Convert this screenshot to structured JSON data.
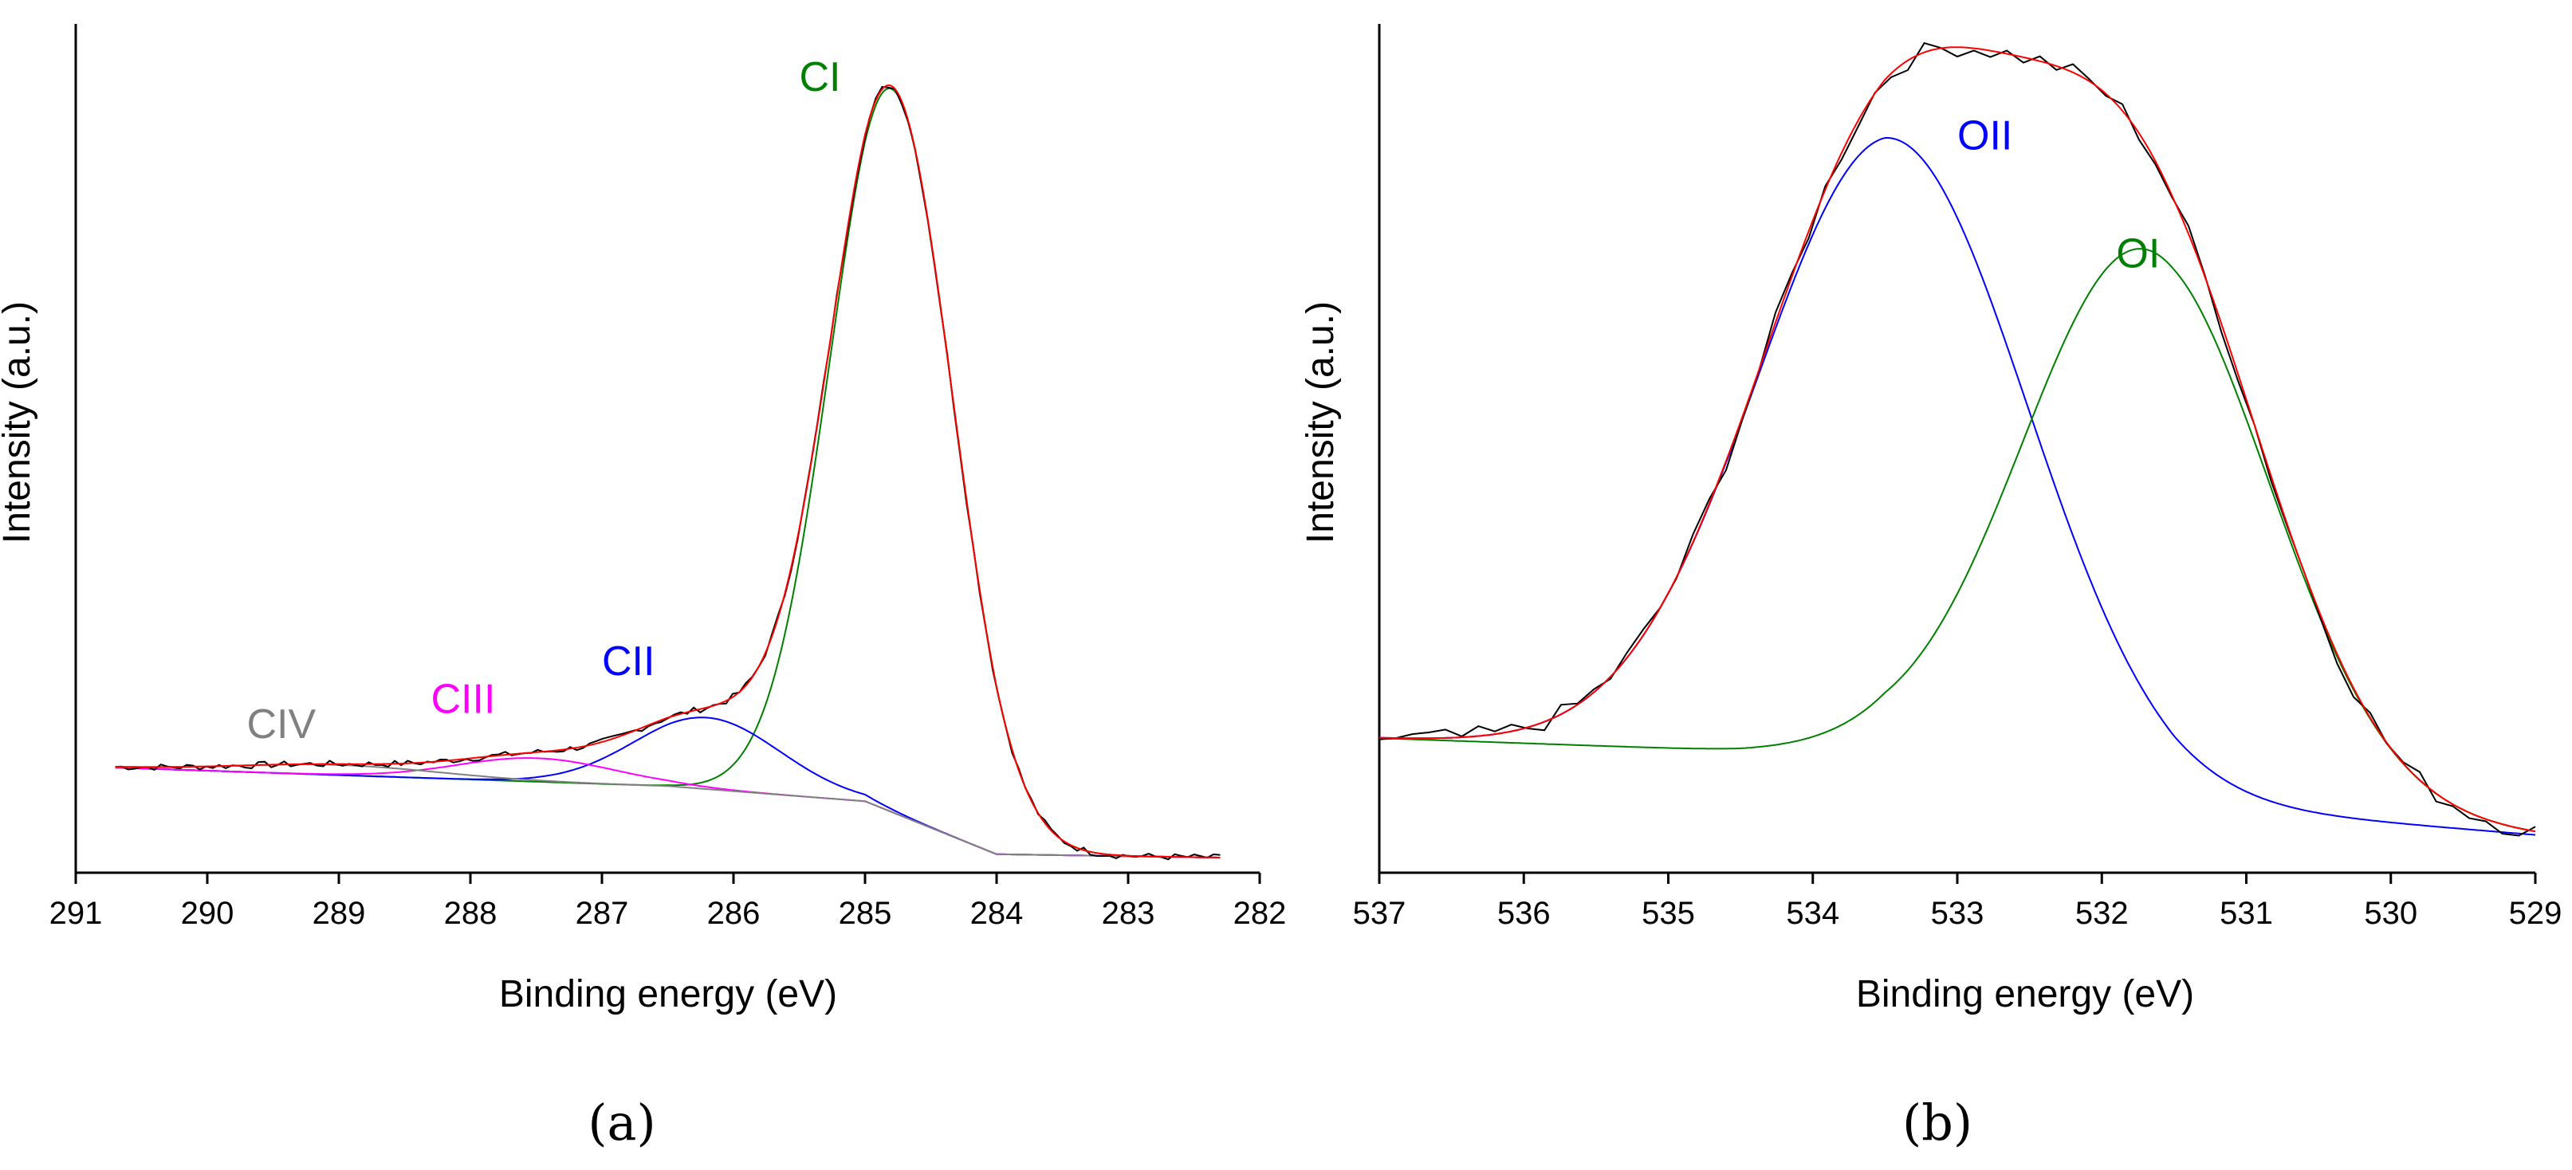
{
  "chart_data": [
    {
      "type": "line",
      "panel_label": "(a)",
      "xlabel": "Binding energy (eV)",
      "ylabel": "Intensity (a.u.)",
      "xlim": [
        291,
        282
      ],
      "ylim": [
        0,
        1
      ],
      "x_reversed": true,
      "xticks": [
        291,
        290,
        289,
        288,
        287,
        286,
        285,
        284,
        283,
        282
      ],
      "x_range": [
        290.7,
        282.3
      ],
      "baseline": {
        "x": [
          290.7,
          286.5,
          285.0,
          284.0,
          282.3
        ],
        "y": [
          0.125,
          0.103,
          0.085,
          0.022,
          0.018
        ]
      },
      "components": [
        {
          "name": "CI",
          "color": "#008000",
          "center": 284.8,
          "height": 0.86,
          "fwhm": 1.1
        },
        {
          "name": "CII",
          "color": "#0000ff",
          "center": 286.2,
          "height": 0.085,
          "fwhm": 1.3
        },
        {
          "name": "CIII",
          "color": "#ff00ff",
          "center": 287.5,
          "height": 0.028,
          "fwhm": 1.4
        },
        {
          "name": "CIV",
          "color": "#808080",
          "center": 289.0,
          "height": 0.012,
          "fwhm": 1.8
        }
      ],
      "fit_color": "#ff0000",
      "data_color": "#000000",
      "noise": 0.004,
      "annotations": [
        {
          "text": "CI",
          "color": "#008000",
          "x": 285.5,
          "y": 0.93
        },
        {
          "text": "CII",
          "color": "#0000ff",
          "x": 287.0,
          "y": 0.235
        },
        {
          "text": "CIII",
          "color": "#ff00ff",
          "x": 288.3,
          "y": 0.19
        },
        {
          "text": "CIV",
          "color": "#808080",
          "x": 289.7,
          "y": 0.16
        }
      ]
    },
    {
      "type": "line",
      "panel_label": "(b)",
      "xlabel": "Binding energy (eV)",
      "ylabel": "Intensity (a.u.)",
      "xlim": [
        537,
        529
      ],
      "ylim": [
        0,
        1
      ],
      "x_reversed": true,
      "xticks": [
        537,
        536,
        535,
        534,
        533,
        532,
        531,
        530,
        529
      ],
      "x_range": [
        537,
        529
      ],
      "baseline": {
        "x": [
          537,
          534.5,
          533.5,
          531.5,
          529
        ],
        "y": [
          0.16,
          0.145,
          0.145,
          0.08,
          0.045
        ]
      },
      "components": [
        {
          "name": "OII",
          "color": "#0000ff",
          "center": 533.45,
          "height": 0.73,
          "fwhm": 2.2
        },
        {
          "name": "OI",
          "color": "#008000",
          "center": 531.7,
          "height": 0.655,
          "fwhm": 2.0
        }
      ],
      "fit_color": "#ff0000",
      "data_color": "#000000",
      "noise": 0.012,
      "annotations": [
        {
          "text": "OII",
          "color": "#0000ff",
          "x": 533.0,
          "y": 0.86
        },
        {
          "text": "OI",
          "color": "#008000",
          "x": 531.9,
          "y": 0.72
        }
      ]
    }
  ]
}
